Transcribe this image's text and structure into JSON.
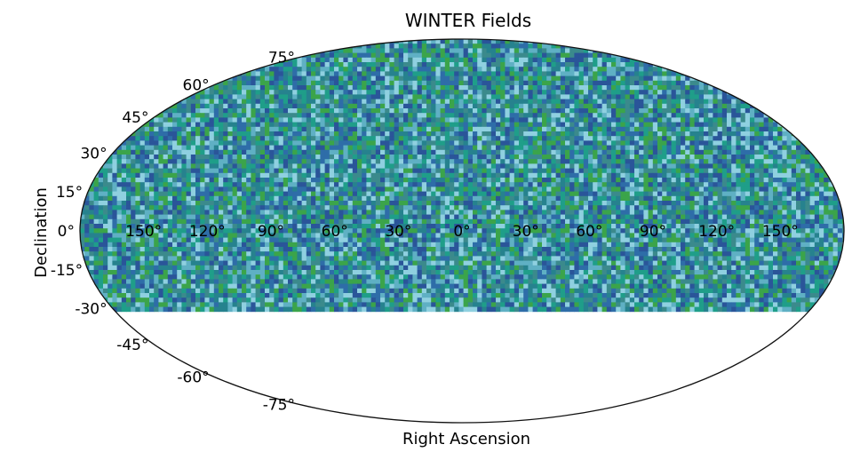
{
  "chart_data": {
    "type": "heatmap",
    "projection": "mollweide",
    "title": "WINTER Fields",
    "xlabel": "Right Ascension",
    "ylabel": "Declination",
    "ra_ticks": [
      "150°",
      "120°",
      "90°",
      "60°",
      "30°",
      "0°",
      "30°",
      "60°",
      "90°",
      "120°",
      "150°"
    ],
    "dec_ticks": [
      "75°",
      "60°",
      "45°",
      "30°",
      "15°",
      "0°",
      "-15°",
      "-30°",
      "-45°",
      "-60°",
      "-75°"
    ],
    "dec_coverage_deg": [
      -31,
      90
    ],
    "grid": false,
    "colors": [
      "#1f9e89",
      "#2e6da8",
      "#3ba44a",
      "#5fb0c4",
      "#8fd0e0",
      "#2a5599",
      "#26828e",
      "#3b8a8c"
    ]
  }
}
